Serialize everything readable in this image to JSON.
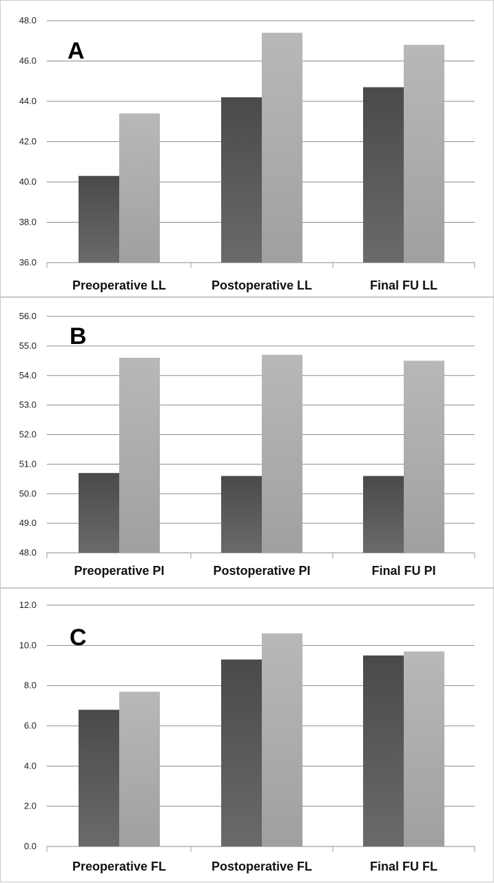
{
  "chart_data": [
    {
      "type": "bar",
      "panel_label": "A",
      "categories": [
        "Preoperative LL",
        "Postoperative LL",
        "Final FU LL"
      ],
      "series": [
        {
          "values": [
            40.3,
            44.2,
            44.7
          ]
        },
        {
          "values": [
            43.4,
            47.4,
            46.8
          ]
        }
      ],
      "ylim": [
        36.0,
        48.0
      ],
      "yticks": [
        "36.0",
        "38.0",
        "40.0",
        "42.0",
        "44.0",
        "46.0",
        "48.0"
      ],
      "grid": true,
      "series_colors": [
        "#555555",
        "#a8a8a8"
      ]
    },
    {
      "type": "bar",
      "panel_label": "B",
      "categories": [
        "Preoperative PI",
        "Postoperative PI",
        "Final FU PI"
      ],
      "series": [
        {
          "values": [
            50.7,
            50.6,
            50.6
          ]
        },
        {
          "values": [
            54.6,
            54.7,
            54.5
          ]
        }
      ],
      "ylim": [
        48.0,
        56.0
      ],
      "yticks": [
        "48.0",
        "49.0",
        "50.0",
        "51.0",
        "52.0",
        "53.0",
        "54.0",
        "55.0",
        "56.0"
      ],
      "grid": true,
      "series_colors": [
        "#555555",
        "#a8a8a8"
      ]
    },
    {
      "type": "bar",
      "panel_label": "C",
      "categories": [
        "Preoperative FL",
        "Postoperative FL",
        "Final FU FL"
      ],
      "series": [
        {
          "values": [
            6.8,
            9.3,
            9.5
          ]
        },
        {
          "values": [
            7.7,
            10.6,
            9.7
          ]
        }
      ],
      "ylim": [
        0.0,
        12.0
      ],
      "yticks": [
        "0.0",
        "2.0",
        "4.0",
        "6.0",
        "8.0",
        "10.0",
        "12.0"
      ],
      "grid": true,
      "series_colors": [
        "#555555",
        "#a8a8a8"
      ]
    }
  ]
}
